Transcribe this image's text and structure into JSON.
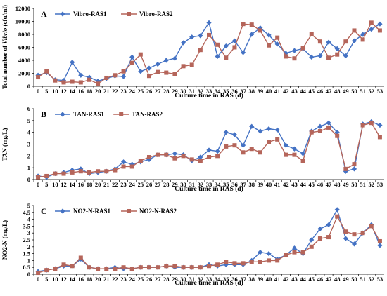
{
  "colors": {
    "series1": "#4472C4",
    "series2": "#B5655A"
  },
  "chart_data": [
    {
      "type": "line",
      "panel_label": "A",
      "xlabel": "Culture time in RAS (d)",
      "ylabel": "Total number of Vibrio (cfu/ml)",
      "x": [
        "0",
        "5",
        "10",
        "12",
        "14",
        "16",
        "18",
        "20",
        "21",
        "22",
        "23",
        "24",
        "25",
        "26",
        "27",
        "28",
        "29",
        "30",
        "31",
        "32",
        "33",
        "34",
        "35",
        "36",
        "37",
        "38",
        "39",
        "40",
        "41",
        "42",
        "43",
        "44",
        "45",
        "46",
        "47",
        "48",
        "49",
        "50",
        "51",
        "52",
        "53"
      ],
      "ylim": [
        0,
        12000
      ],
      "yticks": [
        0,
        2000,
        4000,
        6000,
        8000,
        10000,
        12000
      ],
      "legend_position": "top-left",
      "series": [
        {
          "name": "Vibro-RAS1",
          "marker": "diamond",
          "values": [
            1700,
            2100,
            1000,
            900,
            3700,
            1700,
            1400,
            800,
            1200,
            1600,
            1500,
            4500,
            2300,
            2800,
            3400,
            4000,
            4300,
            6700,
            7600,
            7800,
            9800,
            4600,
            6200,
            7000,
            5200,
            8000,
            9000,
            7900,
            6500,
            5100,
            5500,
            5800,
            4500,
            4700,
            6800,
            5800,
            4700,
            7000,
            8000,
            8800,
            9600
          ]
        },
        {
          "name": "Vibro-RAS2",
          "marker": "square",
          "values": [
            1400,
            2300,
            900,
            600,
            700,
            600,
            1000,
            400,
            1300,
            1700,
            2300,
            3600,
            4900,
            1600,
            2200,
            2100,
            1900,
            3100,
            3300,
            5600,
            7900,
            6400,
            4400,
            6000,
            9600,
            9500,
            8600,
            6300,
            7500,
            4600,
            4300,
            5900,
            8000,
            6900,
            4400,
            4900,
            6900,
            8600,
            7200,
            9800,
            8600
          ]
        }
      ]
    },
    {
      "type": "line",
      "panel_label": "B",
      "xlabel": "Culture time in RAS (d)",
      "ylabel": "TAN (mg/L)",
      "x": [
        "0",
        "5",
        "10",
        "12",
        "14",
        "16",
        "18",
        "20",
        "21",
        "22",
        "23",
        "24",
        "25",
        "26",
        "27",
        "28",
        "29",
        "30",
        "31",
        "32",
        "33",
        "34",
        "35",
        "36",
        "37",
        "38",
        "39",
        "40",
        "41",
        "42",
        "43",
        "44",
        "45",
        "46",
        "47",
        "48",
        "49",
        "50",
        "51",
        "52",
        "53"
      ],
      "ylim": [
        0,
        6
      ],
      "yticks": [
        0,
        1,
        2,
        3,
        4,
        5,
        6
      ],
      "legend_position": "top-left",
      "series": [
        {
          "name": "TAN-RAS1",
          "marker": "diamond",
          "values": [
            0.3,
            0.2,
            0.5,
            0.6,
            0.8,
            0.9,
            0.5,
            0.6,
            0.7,
            0.9,
            1.5,
            1.3,
            1.5,
            1.7,
            2.1,
            2.1,
            2.2,
            2.1,
            1.6,
            1.9,
            2.5,
            2.4,
            4.0,
            3.8,
            2.9,
            4.5,
            4.1,
            4.3,
            4.2,
            2.9,
            2.6,
            2.2,
            4.1,
            4.5,
            4.8,
            4.0,
            0.7,
            0.9,
            4.7,
            4.9,
            4.6
          ]
        },
        {
          "name": "TAN-RAS2",
          "marker": "square",
          "values": [
            0.2,
            0.3,
            0.5,
            0.5,
            0.6,
            0.7,
            0.6,
            0.7,
            0.7,
            0.8,
            1.1,
            1.1,
            1.6,
            1.9,
            2.1,
            2.1,
            1.8,
            2.0,
            1.7,
            1.6,
            1.9,
            2.0,
            2.8,
            2.9,
            2.3,
            2.6,
            2.3,
            3.2,
            3.4,
            2.1,
            2.1,
            1.6,
            4.0,
            4.1,
            4.4,
            3.7,
            0.9,
            1.3,
            4.6,
            4.8,
            3.6
          ]
        }
      ]
    },
    {
      "type": "line",
      "panel_label": "C",
      "xlabel": "Culture time in RAS (d)",
      "ylabel": "NO2-N (mg/L)",
      "x": [
        "0",
        "5",
        "10",
        "12",
        "14",
        "16",
        "18",
        "20",
        "21",
        "22",
        "23",
        "24",
        "25",
        "26",
        "27",
        "28",
        "29",
        "30",
        "31",
        "32",
        "33",
        "34",
        "35",
        "36",
        "37",
        "38",
        "39",
        "40",
        "41",
        "42",
        "43",
        "44",
        "45",
        "46",
        "47",
        "48",
        "49",
        "50",
        "51",
        "52",
        "53"
      ],
      "ylim": [
        0,
        5
      ],
      "yticks": [
        0,
        0.5,
        1,
        1.5,
        2,
        2.5,
        3,
        3.5,
        4,
        4.5,
        5
      ],
      "legend_position": "top-left",
      "series": [
        {
          "name": "NO2-N-RAS1",
          "marker": "diamond",
          "values": [
            0.2,
            0.3,
            0.4,
            0.6,
            0.6,
            1.1,
            0.5,
            0.4,
            0.4,
            0.5,
            0.4,
            0.4,
            0.5,
            0.5,
            0.5,
            0.6,
            0.5,
            0.5,
            0.5,
            0.5,
            0.7,
            0.6,
            0.7,
            0.7,
            0.7,
            1.0,
            1.6,
            1.5,
            1.1,
            1.4,
            1.9,
            1.5,
            2.5,
            3.3,
            3.6,
            4.7,
            2.6,
            2.2,
            3.0,
            3.6,
            2.1
          ]
        },
        {
          "name": "NO2-N-RAS2",
          "marker": "square",
          "values": [
            0.1,
            0.3,
            0.4,
            0.7,
            0.6,
            1.2,
            0.5,
            0.4,
            0.4,
            0.4,
            0.5,
            0.4,
            0.5,
            0.5,
            0.5,
            0.6,
            0.6,
            0.5,
            0.5,
            0.5,
            0.6,
            0.7,
            0.9,
            0.8,
            0.8,
            0.9,
            0.9,
            1.0,
            1.0,
            1.4,
            1.6,
            1.6,
            2.0,
            2.6,
            2.7,
            4.2,
            3.1,
            2.9,
            3.0,
            3.5,
            2.4
          ]
        }
      ]
    }
  ]
}
